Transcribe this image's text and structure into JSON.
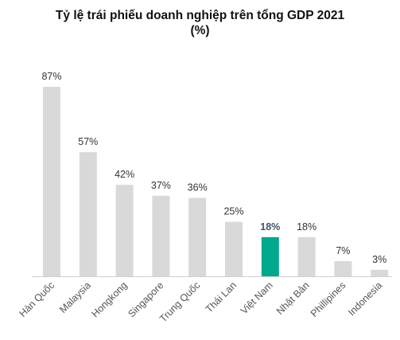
{
  "chart_data": {
    "type": "bar",
    "title": "Tỷ lệ trái phiếu doanh nghiệp trên tổng GDP 2021",
    "subtitle": "(%)",
    "xlabel": "",
    "ylabel": "",
    "ylim": [
      0,
      100
    ],
    "grid": false,
    "categories": [
      "Hàn Quốc",
      "Malaysia",
      "Hongkong",
      "Singapore",
      "Trung Quốc",
      "Thái Lan",
      "Việt Nam",
      "Nhật Bản",
      "Phillipines",
      "Indonesia"
    ],
    "values": [
      87,
      57,
      42,
      37,
      36,
      25,
      18,
      18,
      7,
      3
    ],
    "value_labels": [
      "87%",
      "57%",
      "42%",
      "37%",
      "36%",
      "25%",
      "18%",
      "18%",
      "7%",
      "3%"
    ],
    "highlight_index": 6,
    "colors": {
      "bar": "#d9d9d9",
      "highlight": "#00a88e",
      "axis": "#d0d0d0"
    }
  }
}
